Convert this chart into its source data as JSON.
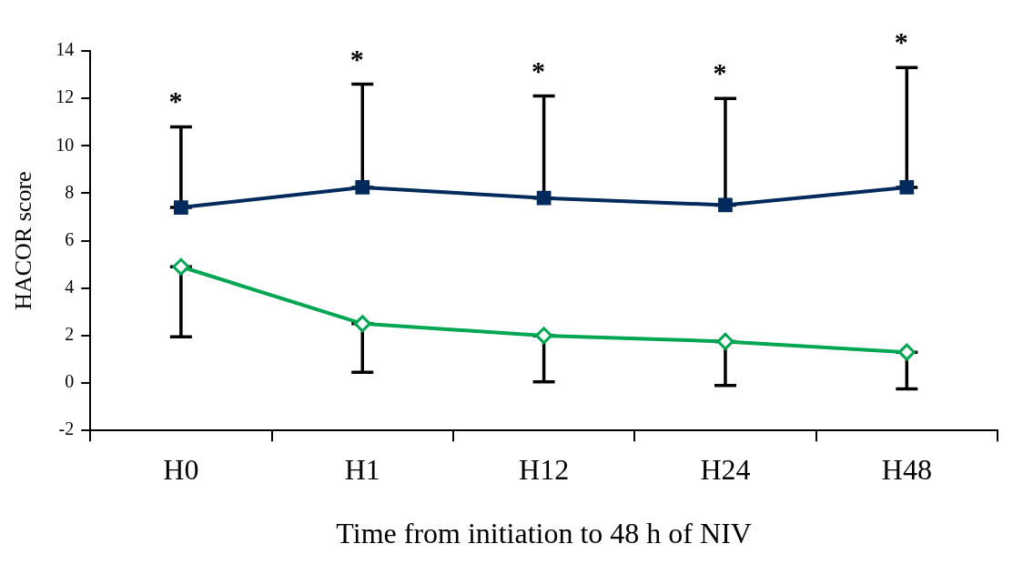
{
  "chart_data": {
    "type": "line",
    "xlabel": "Time from initiation to 48 h of NIV",
    "ylabel": "HACOR score",
    "categories": [
      "H0",
      "H1",
      "H12",
      "H24",
      "H48"
    ],
    "series": [
      {
        "color": "#002b5c",
        "marker": "square",
        "values": [
          7.4,
          8.25,
          7.8,
          7.5,
          8.25
        ],
        "errors": [
          [
            7.4,
            10.8
          ],
          [
            8.25,
            12.6
          ],
          [
            7.8,
            12.1
          ],
          [
            7.5,
            12.0
          ],
          [
            8.25,
            13.3
          ]
        ]
      },
      {
        "color": "#00a651",
        "marker": "diamond",
        "values": [
          4.9,
          2.5,
          2.0,
          1.75,
          1.3
        ],
        "errors": [
          [
            1.95,
            4.9
          ],
          [
            0.45,
            2.5
          ],
          [
            0.05,
            2.0
          ],
          [
            -0.1,
            1.75
          ],
          [
            -0.25,
            1.3
          ]
        ]
      }
    ],
    "annotations": [
      "*",
      "*",
      "*",
      "*",
      "*"
    ],
    "ylim": [
      -2,
      14
    ],
    "yticks": [
      -2,
      0,
      2,
      4,
      6,
      8,
      10,
      12,
      14
    ],
    "grid": false,
    "legend": false
  }
}
